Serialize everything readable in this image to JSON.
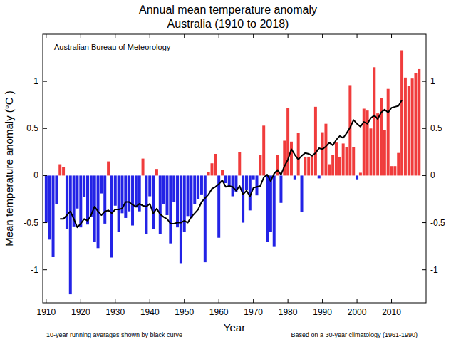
{
  "chart_data": {
    "type": "bar",
    "title": "Annual mean temperature anomaly",
    "subtitle": "Australia (1910 to 2018)",
    "x_label": "Year",
    "y_label": "Mean temperature anomaly (°C )",
    "annotations": [
      "Australian Bureau of Meteorology",
      "10-year running averages shown by black curve",
      "Based on a 30-year climatology (1961-1990)"
    ],
    "x": [
      1910,
      1911,
      1912,
      1913,
      1914,
      1915,
      1916,
      1917,
      1918,
      1919,
      1920,
      1921,
      1922,
      1923,
      1924,
      1925,
      1926,
      1927,
      1928,
      1929,
      1930,
      1931,
      1932,
      1933,
      1934,
      1935,
      1936,
      1937,
      1938,
      1939,
      1940,
      1941,
      1942,
      1943,
      1944,
      1945,
      1946,
      1947,
      1948,
      1949,
      1950,
      1951,
      1952,
      1953,
      1954,
      1955,
      1956,
      1957,
      1958,
      1959,
      1960,
      1961,
      1962,
      1963,
      1964,
      1965,
      1966,
      1967,
      1968,
      1969,
      1970,
      1971,
      1972,
      1973,
      1974,
      1975,
      1976,
      1977,
      1978,
      1979,
      1980,
      1981,
      1982,
      1983,
      1984,
      1985,
      1986,
      1987,
      1988,
      1989,
      1990,
      1991,
      1992,
      1993,
      1994,
      1995,
      1996,
      1997,
      1998,
      1999,
      2000,
      2001,
      2002,
      2003,
      2004,
      2005,
      2006,
      2007,
      2008,
      2009,
      2010,
      2011,
      2012,
      2013,
      2014,
      2015,
      2016,
      2017,
      2018
    ],
    "series": [
      {
        "type": "bar",
        "values": [
          -0.5,
          -0.68,
          -0.86,
          -0.3,
          0.12,
          0.09,
          -0.57,
          -1.26,
          -0.54,
          -0.35,
          -0.55,
          -0.23,
          -0.52,
          -0.44,
          -0.7,
          -0.77,
          -0.19,
          -0.51,
          0.15,
          -0.87,
          -0.32,
          -0.6,
          -0.4,
          -0.45,
          -0.38,
          -0.53,
          -0.34,
          -0.38,
          0.18,
          -0.62,
          -0.22,
          -0.57,
          0.07,
          -0.62,
          -0.3,
          -0.42,
          -0.72,
          -0.28,
          -0.55,
          -0.93,
          -0.6,
          -0.43,
          -0.45,
          -0.3,
          -0.25,
          -0.2,
          -0.92,
          0.04,
          0.13,
          0.23,
          -0.66,
          0.06,
          -0.08,
          -0.12,
          -0.22,
          -0.17,
          0.25,
          -0.5,
          -0.15,
          -0.37,
          -0.04,
          -0.21,
          0.22,
          0.53,
          -0.7,
          -0.6,
          -0.75,
          0.22,
          -0.29,
          0.37,
          0.72,
          0.36,
          -0.04,
          0.45,
          -0.39,
          0.2,
          0.2,
          0.22,
          0.73,
          -0.03,
          0.46,
          0.55,
          0.12,
          0.22,
          0.35,
          0.2,
          0.34,
          0.3,
          0.96,
          0.3,
          -0.04,
          0.03,
          0.71,
          0.69,
          0.5,
          1.15,
          0.66,
          0.82,
          0.48,
          0.92,
          0.1,
          0.1,
          0.24,
          1.33,
          1.04,
          0.95,
          1.03,
          1.09,
          1.13
        ],
        "colors": [
          "#2323e6",
          "#2323e6",
          "#2323e6",
          "#2323e6",
          "#f03c3c",
          "#f03c3c",
          "#2323e6",
          "#2323e6",
          "#2323e6",
          "#2323e6",
          "#2323e6",
          "#2323e6",
          "#2323e6",
          "#2323e6",
          "#2323e6",
          "#2323e6",
          "#2323e6",
          "#2323e6",
          "#f03c3c",
          "#2323e6",
          "#2323e6",
          "#2323e6",
          "#2323e6",
          "#2323e6",
          "#2323e6",
          "#2323e6",
          "#2323e6",
          "#2323e6",
          "#f03c3c",
          "#2323e6",
          "#2323e6",
          "#2323e6",
          "#f03c3c",
          "#2323e6",
          "#2323e6",
          "#2323e6",
          "#2323e6",
          "#2323e6",
          "#2323e6",
          "#2323e6",
          "#2323e6",
          "#2323e6",
          "#2323e6",
          "#2323e6",
          "#2323e6",
          "#2323e6",
          "#2323e6",
          "#f03c3c",
          "#f03c3c",
          "#f03c3c",
          "#2323e6",
          "#f03c3c",
          "#2323e6",
          "#2323e6",
          "#2323e6",
          "#2323e6",
          "#f03c3c",
          "#2323e6",
          "#2323e6",
          "#2323e6",
          "#2323e6",
          "#2323e6",
          "#f03c3c",
          "#f03c3c",
          "#2323e6",
          "#2323e6",
          "#2323e6",
          "#f03c3c",
          "#2323e6",
          "#f03c3c",
          "#f03c3c",
          "#f03c3c",
          "#2323e6",
          "#f03c3c",
          "#2323e6",
          "#f03c3c",
          "#f03c3c",
          "#f03c3c",
          "#f03c3c",
          "#2323e6",
          "#f03c3c",
          "#f03c3c",
          "#f03c3c",
          "#f03c3c",
          "#f03c3c",
          "#f03c3c",
          "#f03c3c",
          "#f03c3c",
          "#f03c3c",
          "#f03c3c",
          "#2323e6",
          "#f03c3c",
          "#f03c3c",
          "#f03c3c",
          "#f03c3c",
          "#f03c3c",
          "#f03c3c",
          "#f03c3c",
          "#f03c3c",
          "#f03c3c",
          "#f03c3c",
          "#f03c3c",
          "#f03c3c",
          "#f03c3c",
          "#f03c3c",
          "#f03c3c",
          "#f03c3c",
          "#f03c3c",
          "#f03c3c"
        ]
      },
      {
        "type": "line",
        "color": "#000000",
        "values": [
          null,
          null,
          null,
          null,
          -0.46,
          -0.46,
          -0.42,
          -0.38,
          -0.46,
          -0.55,
          -0.51,
          -0.46,
          -0.48,
          -0.42,
          -0.33,
          -0.38,
          -0.42,
          -0.38,
          -0.37,
          -0.4,
          -0.36,
          -0.36,
          -0.35,
          -0.28,
          -0.28,
          -0.31,
          -0.33,
          -0.3,
          -0.32,
          -0.33,
          -0.3,
          -0.4,
          -0.35,
          -0.41,
          -0.44,
          -0.46,
          -0.51,
          -0.51,
          -0.5,
          -0.5,
          -0.48,
          -0.5,
          -0.44,
          -0.4,
          -0.36,
          -0.28,
          -0.24,
          -0.2,
          -0.14,
          -0.12,
          -0.09,
          -0.05,
          -0.12,
          -0.11,
          -0.12,
          -0.16,
          -0.11,
          -0.2,
          -0.16,
          -0.22,
          -0.13,
          -0.12,
          -0.11,
          -0.02,
          0.01,
          -0.06,
          0.02,
          0.06,
          0.01,
          0.1,
          0.17,
          0.28,
          0.22,
          0.17,
          0.21,
          0.24,
          0.23,
          0.21,
          0.24,
          0.29,
          0.28,
          0.31,
          0.35,
          0.32,
          0.38,
          0.42,
          0.4,
          0.45,
          0.51,
          0.59,
          0.55,
          0.52,
          0.57,
          0.55,
          0.61,
          0.64,
          0.6,
          0.67,
          0.7,
          0.67,
          0.72,
          0.73,
          0.74,
          0.8,
          null,
          null,
          null,
          null,
          null
        ]
      }
    ],
    "xlim": [
      1909,
      2020
    ],
    "xticks": [
      1910,
      1920,
      1930,
      1940,
      1950,
      1960,
      1970,
      1980,
      1990,
      2000,
      2010
    ],
    "ylim": [
      -1.35,
      1.5
    ],
    "yticks": [
      -1,
      -0.5,
      0,
      0.5,
      1
    ]
  }
}
